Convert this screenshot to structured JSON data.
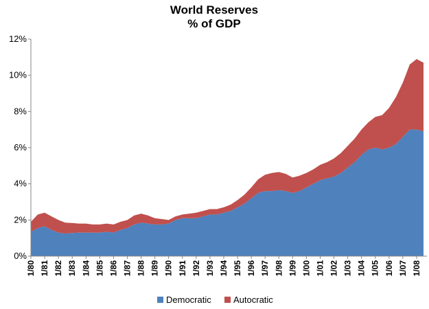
{
  "chart_data": {
    "type": "area",
    "stacked": true,
    "title": "World Reserves",
    "subtitle": "% of GDP",
    "xlabel": "",
    "ylabel": "",
    "ylim": [
      0,
      12
    ],
    "y_ticks": [
      "0%",
      "2%",
      "4%",
      "6%",
      "8%",
      "10%",
      "12%"
    ],
    "x_ticks": [
      "1/80",
      "1/81",
      "1/82",
      "1/83",
      "1/84",
      "1/85",
      "1/86",
      "1/87",
      "1/88",
      "1/89",
      "1/90",
      "1/91",
      "1/92",
      "1/93",
      "1/94",
      "1/95",
      "1/96",
      "1/97",
      "1/98",
      "1/99",
      "1/00",
      "1/01",
      "1/02",
      "1/03",
      "1/04",
      "1/05",
      "1/06",
      "1/07",
      "1/08"
    ],
    "grid": false,
    "legend": "bottom",
    "colors": {
      "democratic": "#4f81bd",
      "autocratic": "#c0504d"
    },
    "x": [
      1980.0,
      1980.5,
      1981.0,
      1981.5,
      1982.0,
      1982.5,
      1983.0,
      1983.5,
      1984.0,
      1984.5,
      1985.0,
      1985.5,
      1986.0,
      1986.5,
      1987.0,
      1987.5,
      1988.0,
      1988.5,
      1989.0,
      1989.5,
      1990.0,
      1990.5,
      1991.0,
      1991.5,
      1992.0,
      1992.5,
      1993.0,
      1993.5,
      1994.0,
      1994.5,
      1995.0,
      1995.5,
      1996.0,
      1996.5,
      1997.0,
      1997.5,
      1998.0,
      1998.5,
      1999.0,
      1999.5,
      2000.0,
      2000.5,
      2001.0,
      2001.5,
      2002.0,
      2002.5,
      2003.0,
      2003.5,
      2004.0,
      2004.5,
      2005.0,
      2005.5,
      2006.0,
      2006.5,
      2007.0,
      2007.5,
      2008.0,
      2008.5
    ],
    "series": [
      {
        "name": "Democratic",
        "values": [
          1.35,
          1.55,
          1.65,
          1.45,
          1.3,
          1.25,
          1.28,
          1.3,
          1.3,
          1.3,
          1.3,
          1.35,
          1.3,
          1.45,
          1.55,
          1.75,
          1.85,
          1.8,
          1.75,
          1.75,
          1.8,
          2.0,
          2.1,
          2.1,
          2.1,
          2.2,
          2.3,
          2.3,
          2.4,
          2.5,
          2.7,
          2.9,
          3.2,
          3.5,
          3.6,
          3.6,
          3.65,
          3.6,
          3.5,
          3.6,
          3.8,
          4.0,
          4.2,
          4.3,
          4.4,
          4.6,
          4.9,
          5.2,
          5.6,
          5.9,
          6.0,
          5.9,
          6.0,
          6.2,
          6.6,
          7.0,
          7.0,
          6.9
        ]
      },
      {
        "name": "Autocratic",
        "values": [
          0.55,
          0.75,
          0.75,
          0.75,
          0.7,
          0.6,
          0.55,
          0.5,
          0.5,
          0.45,
          0.45,
          0.45,
          0.45,
          0.45,
          0.45,
          0.5,
          0.5,
          0.45,
          0.35,
          0.3,
          0.2,
          0.2,
          0.2,
          0.25,
          0.3,
          0.3,
          0.3,
          0.3,
          0.3,
          0.35,
          0.4,
          0.5,
          0.6,
          0.75,
          0.9,
          1.0,
          1.0,
          0.95,
          0.85,
          0.85,
          0.8,
          0.8,
          0.85,
          0.9,
          1.0,
          1.1,
          1.2,
          1.3,
          1.4,
          1.5,
          1.7,
          1.9,
          2.2,
          2.6,
          3.0,
          3.6,
          3.9,
          3.8
        ]
      }
    ]
  }
}
